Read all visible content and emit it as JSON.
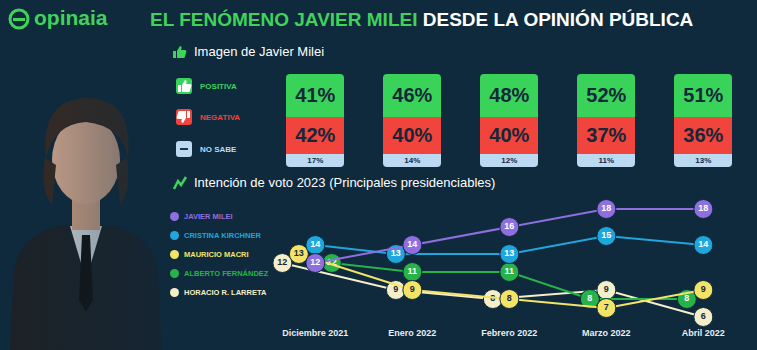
{
  "header": {
    "brand": "opinaia",
    "title_highlight": "EL FENÓMENO JAVIER MILEI",
    "title_rest": "DESDE LA OPINIÓN PÚBLICA"
  },
  "image_panel": {
    "title": "Imagen de Javier Milei",
    "rows": [
      {
        "name": "POSITIVA",
        "color": "#3ad35a",
        "values": [
          41,
          46,
          48,
          52,
          51
        ],
        "value_labels": [
          "41%",
          "46%",
          "48%",
          "52%",
          "51%"
        ]
      },
      {
        "name": "NEGATIVA",
        "color": "#f0443c",
        "values": [
          42,
          40,
          40,
          37,
          36
        ],
        "value_labels": [
          "42%",
          "40%",
          "40%",
          "37%",
          "36%"
        ]
      },
      {
        "name": "NO SABE",
        "color": "#bcd9f2",
        "values": [
          17,
          14,
          12,
          11,
          13
        ],
        "value_labels": [
          "17%",
          "14%",
          "12%",
          "11%",
          "13%"
        ]
      }
    ]
  },
  "chart_data": {
    "type": "line",
    "title": "Intención de voto 2023 (Principales presidenciables)",
    "categories": [
      "Diciembre 2021",
      "Enero 2022",
      "Febrero 2022",
      "Marzo 2022",
      "Abril 2022"
    ],
    "series": [
      {
        "name": "JAVIER MILEI",
        "color": "#8f6fe0",
        "values": [
          12,
          14,
          16,
          18,
          18
        ]
      },
      {
        "name": "CRISTINA KIRCHNER",
        "color": "#1fa6dc",
        "values": [
          14,
          13,
          13,
          15,
          14
        ]
      },
      {
        "name": "MAURICIO MACRI",
        "color": "#f3e468",
        "values": [
          13,
          9,
          8,
          7,
          9
        ]
      },
      {
        "name": "ALBERTO FERNÁNDEZ",
        "color": "#27b34a",
        "values": [
          12,
          11,
          11,
          8,
          8
        ]
      },
      {
        "name": "HORACIO R. LARRETA",
        "color": "#f4efc8",
        "values": [
          12,
          9,
          8,
          9,
          6
        ]
      }
    ],
    "ylim": [
      5,
      19
    ],
    "tick_labels": "x",
    "data_labels": true,
    "marker": "circle",
    "legend": "left",
    "grid": false
  }
}
